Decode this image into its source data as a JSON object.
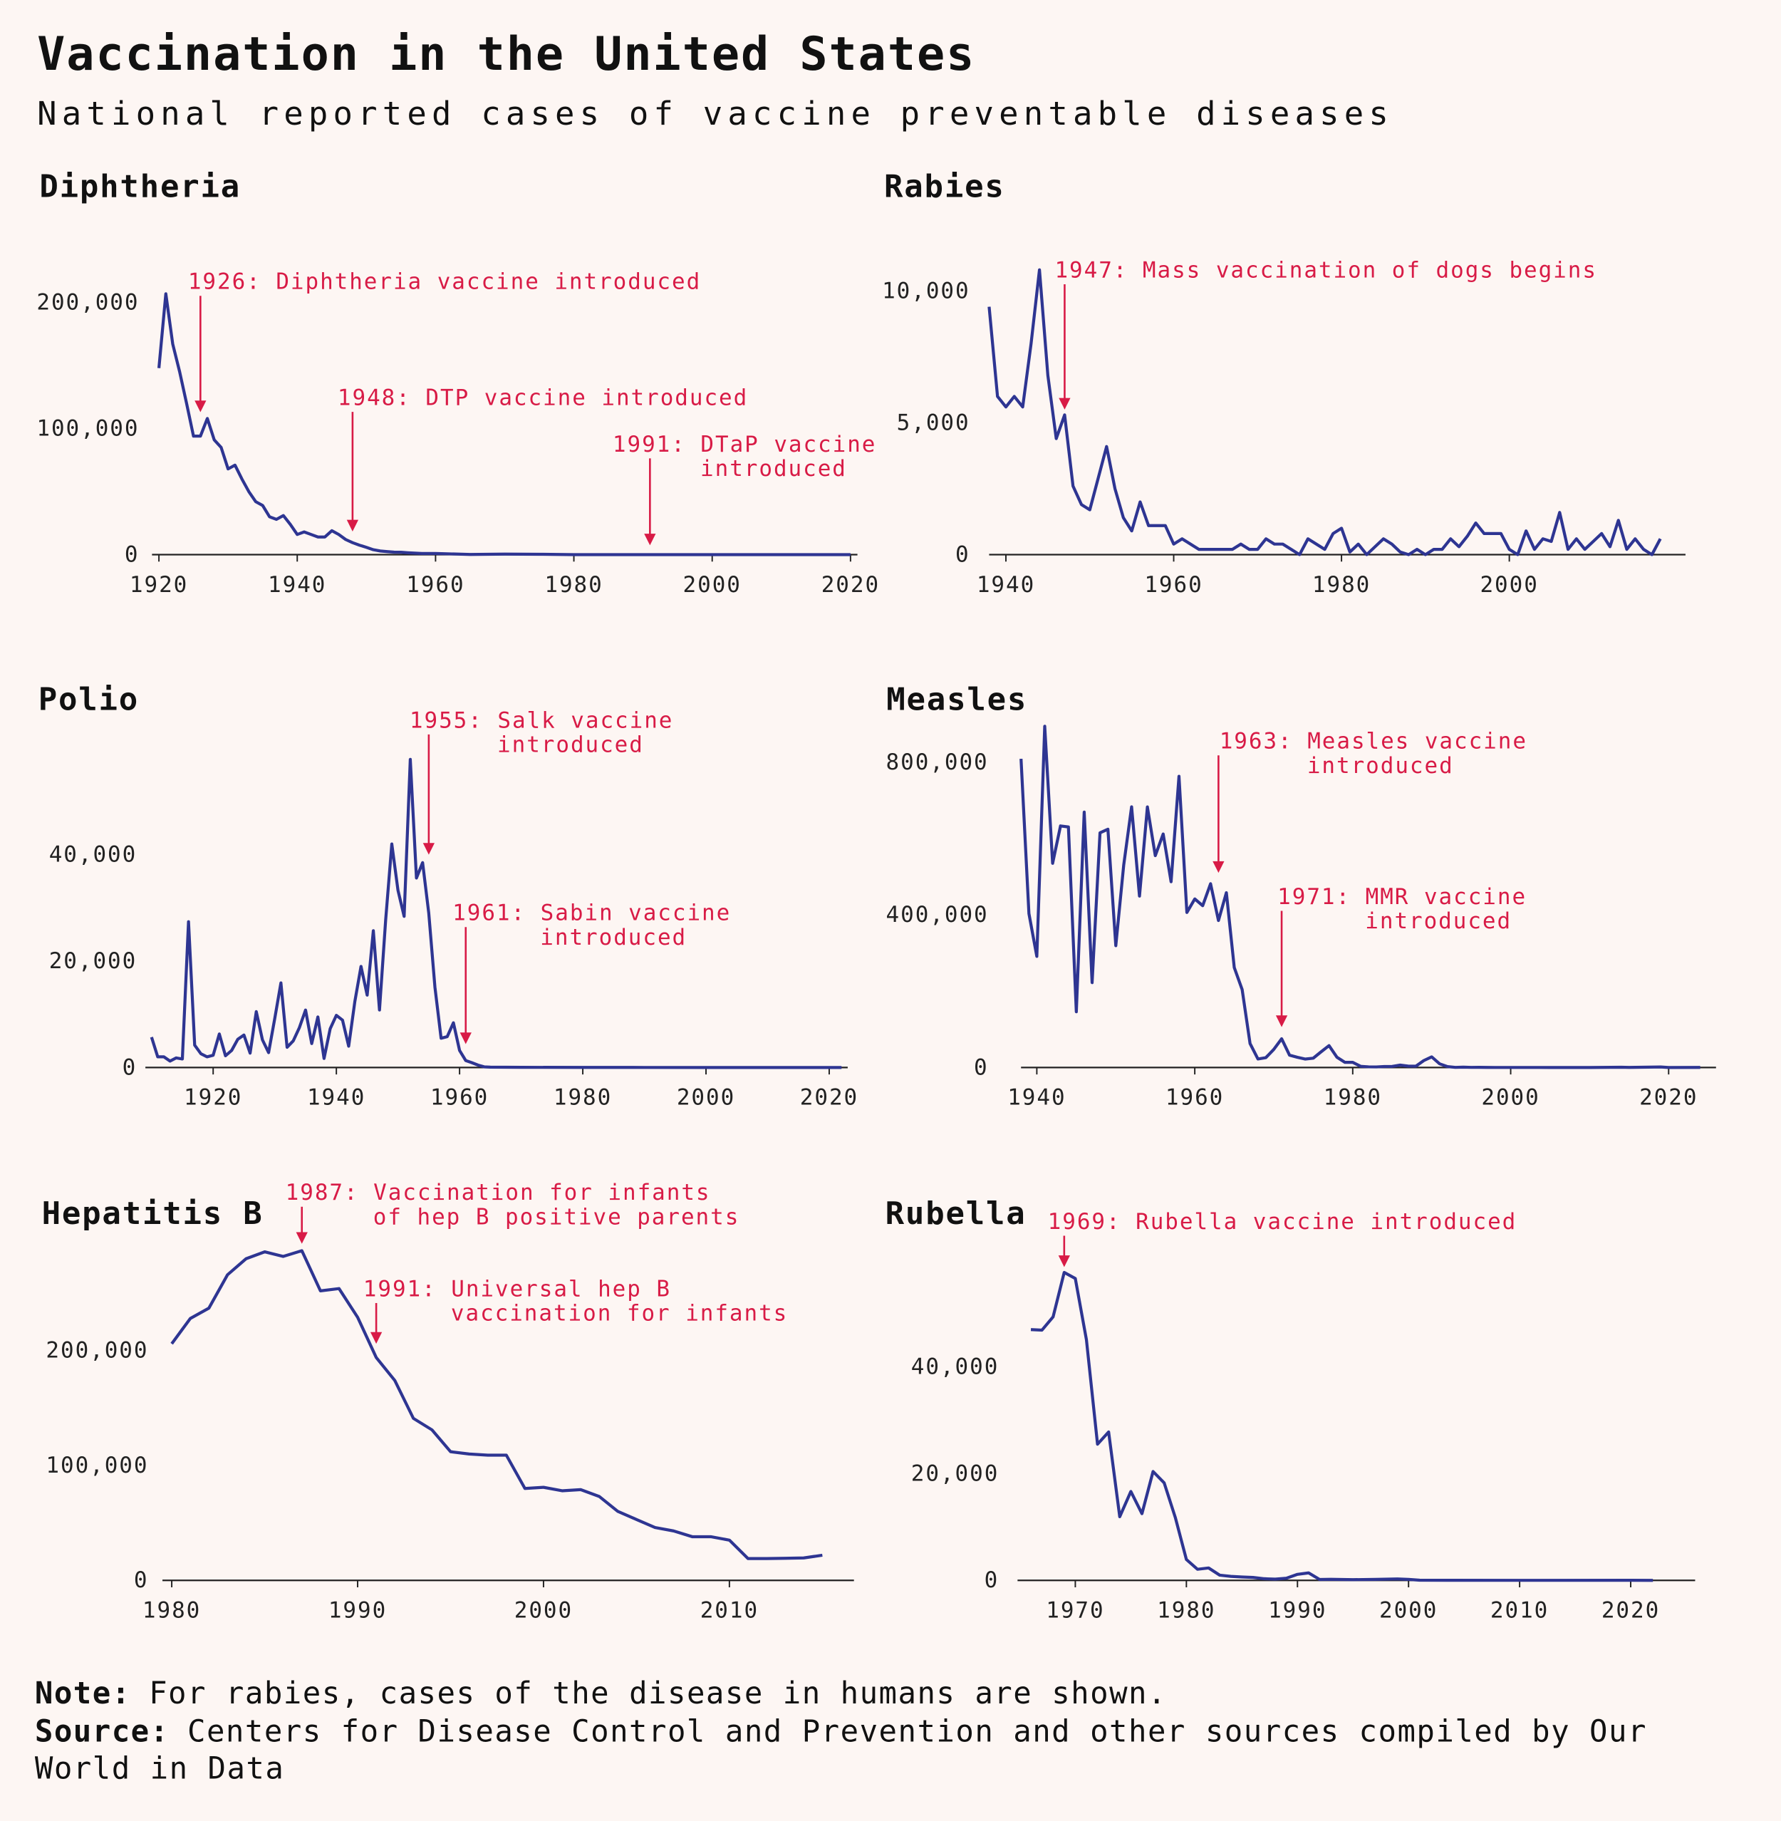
{
  "title": "Vaccination in the United States",
  "subtitle": "National reported cases of vaccine preventable diseases",
  "note_label": "Note:",
  "note": "For rabies, cases of the disease in humans are shown.",
  "source_label": "Source:",
  "source": "Centers for Disease Control and Prevention and other sources compiled by Our World in Data",
  "chart_data": [
    {
      "type": "line",
      "title": "Diphtheria",
      "color": "#2e3592",
      "x": [
        1920,
        1921,
        1922,
        1923,
        1924,
        1925,
        1926,
        1927,
        1928,
        1929,
        1930,
        1931,
        1932,
        1933,
        1934,
        1935,
        1936,
        1937,
        1938,
        1939,
        1940,
        1941,
        1942,
        1943,
        1944,
        1945,
        1946,
        1947,
        1948,
        1949,
        1950,
        1951,
        1952,
        1953,
        1954,
        1955,
        1956,
        1957,
        1958,
        1959,
        1960,
        1965,
        1970,
        1975,
        1980,
        1990,
        2000,
        2010,
        2020
      ],
      "values": [
        147991,
        206939,
        167000,
        145000,
        120000,
        94000,
        94000,
        108000,
        91000,
        85000,
        68000,
        71000,
        60000,
        50000,
        42000,
        39000,
        30000,
        28000,
        31000,
        24000,
        16000,
        18000,
        16000,
        14000,
        14000,
        19000,
        16000,
        12000,
        9500,
        7500,
        5800,
        3900,
        2900,
        2400,
        2000,
        1900,
        1500,
        1200,
        900,
        900,
        900,
        160,
        435,
        307,
        3,
        4,
        1,
        0,
        0
      ],
      "xlim": [
        1919,
        2021
      ],
      "ylim": [
        0,
        220000
      ],
      "xticks": [
        1920,
        1940,
        1960,
        1980,
        2000,
        2020
      ],
      "yticks": [
        0,
        {
          "value": 100000,
          "label": "100,000"
        },
        {
          "value": 200000,
          "label": "200,000"
        }
      ],
      "annotations": [
        {
          "lines": [
            "1926: Diphtheria vaccine introduced"
          ],
          "x": 1926,
          "y": 113000
        },
        {
          "lines": [
            "1948: DTP vaccine introduced"
          ],
          "x": 1948,
          "y": 18400
        },
        {
          "lines": [
            "1991: DTaP vaccine",
            "introduced"
          ],
          "x": 1991,
          "y": 7400
        }
      ]
    },
    {
      "type": "line",
      "title": "Rabies",
      "color": "#2e3592",
      "x": [
        1938,
        1939,
        1940,
        1941,
        1942,
        1943,
        1944,
        1945,
        1946,
        1947,
        1948,
        1949,
        1950,
        1951,
        1952,
        1953,
        1954,
        1955,
        1956,
        1957,
        1958,
        1959,
        1960,
        1961,
        1962,
        1963,
        1964,
        1965,
        1966,
        1967,
        1968,
        1969,
        1970,
        1971,
        1972,
        1973,
        1974,
        1975,
        1976,
        1977,
        1978,
        1979,
        1980,
        1981,
        1982,
        1983,
        1984,
        1985,
        1986,
        1987,
        1988,
        1989,
        1990,
        1991,
        1992,
        1993,
        1994,
        1995,
        1996,
        1997,
        1998,
        1999,
        2000,
        2001,
        2002,
        2003,
        2004,
        2005,
        2006,
        2007,
        2008,
        2009,
        2010,
        2011,
        2012,
        2013,
        2014,
        2015,
        2016,
        2017,
        2018
      ],
      "values": [
        9400,
        6000,
        5600,
        6000,
        5600,
        8000,
        10800,
        6800,
        4400,
        5300,
        2600,
        1900,
        1700,
        2900,
        4100,
        2500,
        1400,
        900,
        2000,
        1100,
        1100,
        1100,
        400,
        600,
        400,
        200,
        200,
        200,
        200,
        200,
        400,
        200,
        200,
        600,
        400,
        400,
        200,
        0,
        600,
        400,
        200,
        800,
        1000,
        100,
        400,
        0,
        300,
        600,
        400,
        100,
        0,
        200,
        0,
        200,
        200,
        600,
        300,
        700,
        1200,
        800,
        800,
        800,
        200,
        0,
        900,
        200,
        600,
        500,
        1600,
        200,
        600,
        200,
        500,
        800,
        300,
        1300,
        200,
        600,
        200,
        0,
        600
      ],
      "xlim": [
        1938,
        2021
      ],
      "ylim": [
        0,
        11000
      ],
      "xticks": [
        1940,
        1960,
        1980,
        2000
      ],
      "yticks": [
        0,
        {
          "value": 5000,
          "label": "5,000"
        },
        {
          "value": 10000,
          "label": "10,000"
        }
      ],
      "annotations": [
        {
          "lines": [
            "1947: Mass vaccination of dogs begins"
          ],
          "x": 1947,
          "y": 5500
        }
      ]
    },
    {
      "type": "line",
      "title": "Polio",
      "color": "#2e3592",
      "x": [
        1910,
        1911,
        1912,
        1913,
        1914,
        1915,
        1916,
        1917,
        1918,
        1919,
        1920,
        1921,
        1922,
        1923,
        1924,
        1925,
        1926,
        1927,
        1928,
        1929,
        1930,
        1931,
        1932,
        1933,
        1934,
        1935,
        1936,
        1937,
        1938,
        1939,
        1940,
        1941,
        1942,
        1943,
        1944,
        1945,
        1946,
        1947,
        1948,
        1949,
        1950,
        1951,
        1952,
        1953,
        1954,
        1955,
        1956,
        1957,
        1958,
        1959,
        1960,
        1961,
        1962,
        1963,
        1964,
        1965,
        1970,
        1980,
        1990,
        2000,
        2010,
        2022
      ],
      "values": [
        5700,
        2000,
        2000,
        1200,
        1800,
        1600,
        27400,
        4200,
        2600,
        2000,
        2300,
        6300,
        2200,
        3200,
        5300,
        6100,
        2700,
        10500,
        5200,
        2800,
        9200,
        15900,
        3800,
        5000,
        7500,
        10800,
        4500,
        9500,
        1700,
        7300,
        9800,
        8900,
        4000,
        12400,
        19000,
        13600,
        25700,
        10800,
        27700,
        42000,
        33300,
        28400,
        57900,
        35600,
        38500,
        29000,
        15100,
        5500,
        5800,
        8400,
        3200,
        1300,
        900,
        450,
        120,
        70,
        30,
        10,
        6,
        0,
        0,
        1
      ],
      "xlim": [
        1909,
        2023
      ],
      "ylim": [
        0,
        58000
      ],
      "xticks": [
        1920,
        1940,
        1960,
        1980,
        2000,
        2020
      ],
      "yticks": [
        0,
        {
          "value": 20000,
          "label": "20,000"
        },
        {
          "value": 40000,
          "label": "40,000"
        }
      ],
      "annotations": [
        {
          "lines": [
            "1955: Salk vaccine",
            "introduced"
          ],
          "x": 1955,
          "y": 40000
        },
        {
          "lines": [
            "1961: Sabin vaccine",
            "introduced"
          ],
          "x": 1961,
          "y": 4400
        }
      ]
    },
    {
      "type": "line",
      "title": "Measles",
      "color": "#2e3592",
      "x": [
        1938,
        1939,
        1940,
        1941,
        1942,
        1943,
        1944,
        1945,
        1946,
        1947,
        1948,
        1949,
        1950,
        1951,
        1952,
        1953,
        1954,
        1955,
        1956,
        1957,
        1958,
        1959,
        1960,
        1961,
        1962,
        1963,
        1964,
        1965,
        1966,
        1967,
        1968,
        1969,
        1970,
        1971,
        1972,
        1973,
        1974,
        1975,
        1976,
        1977,
        1978,
        1979,
        1980,
        1981,
        1982,
        1983,
        1984,
        1985,
        1986,
        1987,
        1988,
        1989,
        1990,
        1991,
        1992,
        1993,
        1994,
        1995,
        1996,
        1997,
        1998,
        2000,
        2005,
        2010,
        2014,
        2015,
        2019,
        2020,
        2024
      ],
      "values": [
        808908,
        403317,
        291162,
        894134,
        534960,
        633010,
        630291,
        146013,
        669162,
        222375,
        615104,
        624372,
        319124,
        530118,
        683077,
        449146,
        682720,
        555156,
        611936,
        486799,
        763094,
        406162,
        441703,
        423919,
        481530,
        385156,
        458083,
        261904,
        204136,
        62705,
        22231,
        25826,
        47351,
        75290,
        32275,
        26690,
        22094,
        24374,
        41126,
        57345,
        26871,
        13597,
        13506,
        3124,
        1714,
        1497,
        2587,
        2822,
        6282,
        3655,
        3396,
        18193,
        27786,
        9643,
        2237,
        312,
        963,
        309,
        508,
        138,
        100,
        86,
        66,
        63,
        667,
        188,
        1274,
        13,
        285
      ],
      "xlim": [
        1938,
        2026
      ],
      "ylim": [
        0,
        900000
      ],
      "xticks": [
        1940,
        1960,
        1980,
        2000,
        2020
      ],
      "yticks": [
        0,
        {
          "value": 400000,
          "label": "400,000"
        },
        {
          "value": 800000,
          "label": "800,000"
        }
      ],
      "annotations": [
        {
          "lines": [
            "1963: Measles vaccine",
            "introduced"
          ],
          "x": 1963,
          "y": 510000
        },
        {
          "lines": [
            "1971: MMR vaccine",
            "introduced"
          ],
          "x": 1971,
          "y": 106000
        }
      ]
    },
    {
      "type": "line",
      "title": "Hepatitis B",
      "color": "#2e3592",
      "x": [
        1980,
        1981,
        1982,
        1983,
        1984,
        1985,
        1986,
        1987,
        1988,
        1989,
        1990,
        1991,
        1992,
        1993,
        1994,
        1995,
        1996,
        1997,
        1998,
        1999,
        2000,
        2001,
        2002,
        2003,
        2004,
        2005,
        2006,
        2007,
        2008,
        2009,
        2010,
        2011,
        2012,
        2013,
        2014,
        2015
      ],
      "values": [
        206000,
        228000,
        237000,
        266000,
        280000,
        286000,
        282000,
        287000,
        252000,
        254000,
        229000,
        194000,
        174000,
        141000,
        131000,
        112000,
        110000,
        109000,
        109000,
        80000,
        81000,
        78000,
        79000,
        73000,
        60000,
        53000,
        46000,
        43000,
        38000,
        38000,
        35000,
        19000,
        19000,
        19200,
        19500,
        21900
      ],
      "xlim": [
        1979.5,
        2016.7
      ],
      "ylim": [
        0,
        300000
      ],
      "xticks": [
        1980,
        1990,
        2000,
        2010
      ],
      "yticks": [
        0,
        {
          "value": 100000,
          "label": "100,000"
        },
        {
          "value": 200000,
          "label": "200,000"
        }
      ],
      "annotations": [
        {
          "lines": [
            "1987: Vaccination for infants",
            "of hep B positive parents"
          ],
          "x": 1987,
          "y": 293000
        },
        {
          "lines": [
            "1991: Universal hep B",
            "vaccination for infants"
          ],
          "x": 1991,
          "y": 206000
        }
      ]
    },
    {
      "type": "line",
      "title": "Rubella",
      "color": "#2e3592",
      "x": [
        1966,
        1967,
        1968,
        1969,
        1970,
        1971,
        1972,
        1973,
        1974,
        1975,
        1976,
        1977,
        1978,
        1979,
        1980,
        1981,
        1982,
        1983,
        1984,
        1985,
        1986,
        1987,
        1988,
        1989,
        1990,
        1991,
        1992,
        1993,
        1995,
        1997,
        1999,
        2000,
        2001,
        2004,
        2010,
        2020,
        2022
      ],
      "values": [
        46975,
        46888,
        49371,
        57686,
        56552,
        45086,
        25507,
        27804,
        11917,
        16652,
        12491,
        20395,
        18269,
        11795,
        3904,
        2077,
        2325,
        970,
        752,
        630,
        551,
        306,
        225,
        396,
        1125,
        1401,
        160,
        192,
        128,
        181,
        267,
        176,
        23,
        10,
        5,
        6,
        1
      ],
      "xlim": [
        1964.8,
        2025.8
      ],
      "ylim": [
        0,
        60000
      ],
      "xticks": [
        1970,
        1980,
        1990,
        2000,
        2010,
        2020
      ],
      "yticks": [
        0,
        {
          "value": 20000,
          "label": "20,000"
        },
        {
          "value": 40000,
          "label": "40,000"
        }
      ],
      "annotations": [
        {
          "lines": [
            "1969: Rubella vaccine introduced"
          ],
          "x": 1969,
          "y": 58700
        }
      ]
    }
  ]
}
